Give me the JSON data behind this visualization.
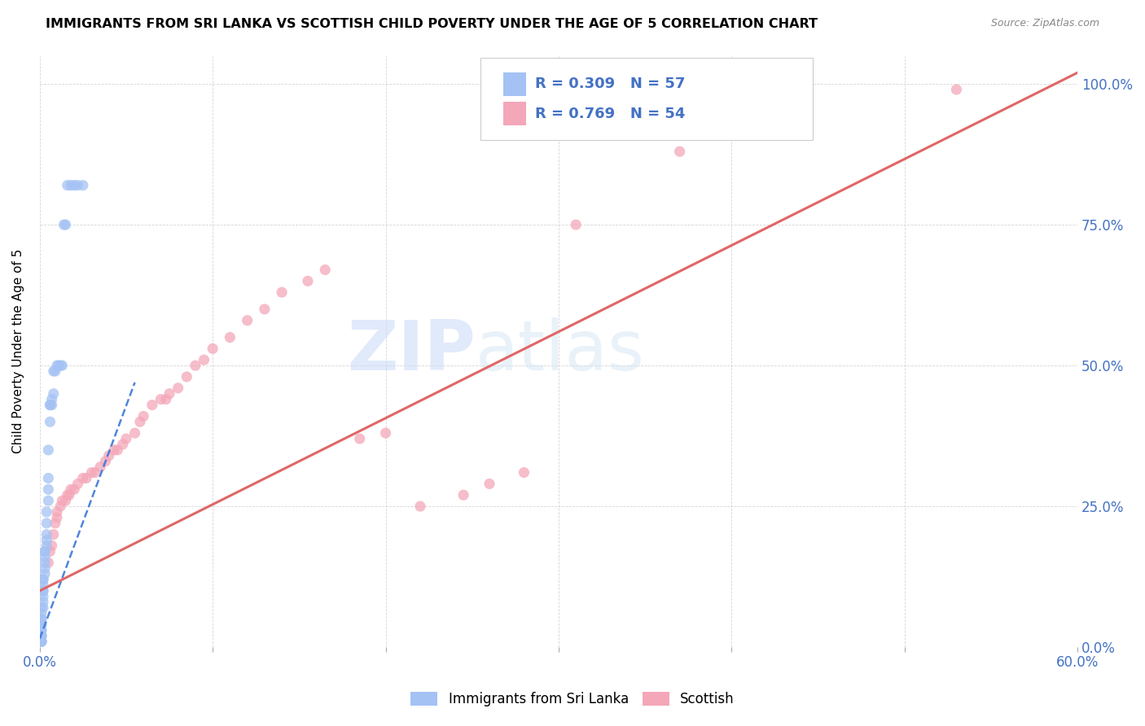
{
  "title": "IMMIGRANTS FROM SRI LANKA VS SCOTTISH CHILD POVERTY UNDER THE AGE OF 5 CORRELATION CHART",
  "source": "Source: ZipAtlas.com",
  "ylabel": "Child Poverty Under the Age of 5",
  "ytick_labels": [
    "0.0%",
    "25.0%",
    "50.0%",
    "75.0%",
    "100.0%"
  ],
  "ytick_values": [
    0,
    0.25,
    0.5,
    0.75,
    1.0
  ],
  "legend_label1": "Immigrants from Sri Lanka",
  "legend_label2": "Scottish",
  "r1": 0.309,
  "n1": 57,
  "r2": 0.769,
  "n2": 54,
  "blue_color": "#a4c2f4",
  "pink_color": "#f4a7b9",
  "blue_line_color": "#3c78d8",
  "pink_line_color": "#e06666",
  "watermark_zip": "ZIP",
  "watermark_atlas": "atlas",
  "blue_scatter_x": [
    0.001,
    0.001,
    0.001,
    0.001,
    0.001,
    0.001,
    0.001,
    0.001,
    0.001,
    0.001,
    0.001,
    0.001,
    0.001,
    0.001,
    0.001,
    0.002,
    0.002,
    0.002,
    0.002,
    0.002,
    0.002,
    0.002,
    0.002,
    0.003,
    0.003,
    0.003,
    0.003,
    0.003,
    0.003,
    0.004,
    0.004,
    0.004,
    0.004,
    0.004,
    0.005,
    0.005,
    0.005,
    0.005,
    0.006,
    0.006,
    0.006,
    0.007,
    0.007,
    0.008,
    0.008,
    0.009,
    0.01,
    0.011,
    0.012,
    0.013,
    0.014,
    0.015,
    0.016,
    0.018,
    0.02,
    0.022,
    0.025
  ],
  "blue_scatter_y": [
    0.01,
    0.01,
    0.01,
    0.01,
    0.02,
    0.02,
    0.02,
    0.03,
    0.03,
    0.04,
    0.04,
    0.05,
    0.05,
    0.06,
    0.07,
    0.07,
    0.08,
    0.09,
    0.1,
    0.1,
    0.11,
    0.12,
    0.12,
    0.13,
    0.14,
    0.15,
    0.16,
    0.17,
    0.17,
    0.18,
    0.19,
    0.2,
    0.22,
    0.24,
    0.26,
    0.28,
    0.3,
    0.35,
    0.4,
    0.43,
    0.43,
    0.43,
    0.44,
    0.45,
    0.49,
    0.49,
    0.5,
    0.5,
    0.5,
    0.5,
    0.75,
    0.75,
    0.82,
    0.82,
    0.82,
    0.82,
    0.82
  ],
  "pink_scatter_x": [
    0.005,
    0.006,
    0.007,
    0.008,
    0.009,
    0.01,
    0.01,
    0.012,
    0.013,
    0.015,
    0.016,
    0.017,
    0.018,
    0.02,
    0.022,
    0.025,
    0.027,
    0.03,
    0.032,
    0.035,
    0.038,
    0.04,
    0.043,
    0.045,
    0.048,
    0.05,
    0.055,
    0.058,
    0.06,
    0.065,
    0.07,
    0.073,
    0.075,
    0.08,
    0.085,
    0.09,
    0.095,
    0.1,
    0.11,
    0.12,
    0.13,
    0.14,
    0.155,
    0.165,
    0.185,
    0.2,
    0.22,
    0.245,
    0.26,
    0.28,
    0.31,
    0.37,
    0.43,
    0.53
  ],
  "pink_scatter_y": [
    0.15,
    0.17,
    0.18,
    0.2,
    0.22,
    0.23,
    0.24,
    0.25,
    0.26,
    0.26,
    0.27,
    0.27,
    0.28,
    0.28,
    0.29,
    0.3,
    0.3,
    0.31,
    0.31,
    0.32,
    0.33,
    0.34,
    0.35,
    0.35,
    0.36,
    0.37,
    0.38,
    0.4,
    0.41,
    0.43,
    0.44,
    0.44,
    0.45,
    0.46,
    0.48,
    0.5,
    0.51,
    0.53,
    0.55,
    0.58,
    0.6,
    0.63,
    0.65,
    0.67,
    0.37,
    0.38,
    0.25,
    0.27,
    0.29,
    0.31,
    0.75,
    0.88,
    0.96,
    0.99
  ],
  "xlim": [
    0.0,
    0.6
  ],
  "ylim": [
    0.0,
    1.05
  ],
  "blue_line_x0": 0.0,
  "blue_line_x1": 0.055,
  "blue_line_y0": 0.015,
  "blue_line_y1": 0.47,
  "pink_line_x0": 0.0,
  "pink_line_x1": 0.6,
  "pink_line_y0": 0.1,
  "pink_line_y1": 1.02
}
